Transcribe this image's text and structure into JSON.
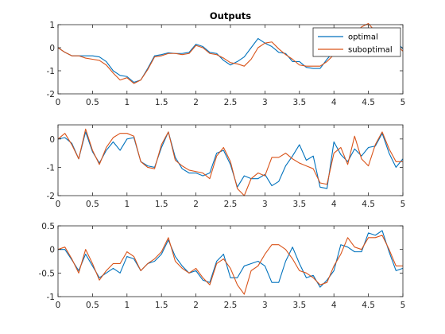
{
  "title": "Outputs",
  "colors": {
    "optimal": "#0072BD",
    "suboptimal": "#D95319",
    "axis": "#262626"
  },
  "legend": {
    "placement": "top-right",
    "entries": [
      "optimal",
      "suboptimal"
    ]
  },
  "chart_data": [
    {
      "type": "line",
      "title": "Outputs",
      "xlim": [
        0,
        5
      ],
      "ylim": [
        -2,
        1
      ],
      "xticks": [
        "0",
        "0.5",
        "1",
        "1.5",
        "2",
        "2.5",
        "3",
        "3.5",
        "4",
        "4.5",
        "5"
      ],
      "yticks": [
        "-2",
        "-1",
        "0",
        "1"
      ],
      "grid": false,
      "legend": "top-right",
      "x": [
        0,
        0.1,
        0.2,
        0.3,
        0.4,
        0.5,
        0.6,
        0.7,
        0.8,
        0.9,
        1.0,
        1.1,
        1.2,
        1.3,
        1.4,
        1.5,
        1.6,
        1.7,
        1.8,
        1.9,
        2.0,
        2.1,
        2.2,
        2.3,
        2.4,
        2.5,
        2.6,
        2.7,
        2.8,
        2.9,
        3.0,
        3.1,
        3.2,
        3.3,
        3.4,
        3.5,
        3.6,
        3.7,
        3.8,
        3.9,
        4.0,
        4.1,
        4.2,
        4.3,
        4.4,
        4.5,
        4.6,
        4.7,
        4.8,
        4.9,
        5.0
      ],
      "series": [
        {
          "name": "optimal",
          "values": [
            0.0,
            -0.2,
            -0.35,
            -0.35,
            -0.35,
            -0.35,
            -0.4,
            -0.6,
            -1.0,
            -1.2,
            -1.25,
            -1.5,
            -1.4,
            -0.9,
            -0.35,
            -0.3,
            -0.22,
            -0.25,
            -0.25,
            -0.2,
            0.15,
            0.05,
            -0.2,
            -0.25,
            -0.55,
            -0.75,
            -0.6,
            -0.4,
            0.0,
            0.4,
            0.2,
            0.05,
            -0.2,
            -0.25,
            -0.6,
            -0.6,
            -0.85,
            -0.9,
            -0.9,
            -0.5,
            -0.15,
            -0.05,
            -0.05,
            0.5,
            0.85,
            0.65,
            0.6,
            0.55,
            0.6,
            0.3,
            -0.05
          ]
        },
        {
          "name": "suboptimal",
          "values": [
            0.0,
            -0.2,
            -0.35,
            -0.35,
            -0.45,
            -0.5,
            -0.55,
            -0.75,
            -1.1,
            -1.4,
            -1.3,
            -1.55,
            -1.4,
            -0.95,
            -0.4,
            -0.35,
            -0.25,
            -0.25,
            -0.3,
            -0.25,
            0.1,
            0.0,
            -0.25,
            -0.3,
            -0.45,
            -0.65,
            -0.7,
            -0.8,
            -0.5,
            0.0,
            0.2,
            0.25,
            -0.05,
            -0.3,
            -0.5,
            -0.75,
            -0.8,
            -0.8,
            -0.8,
            -0.6,
            -0.3,
            -0.1,
            0.2,
            0.6,
            0.9,
            1.05,
            0.7,
            0.45,
            0.4,
            0.15,
            -0.15
          ]
        }
      ]
    },
    {
      "type": "line",
      "xlim": [
        0,
        5
      ],
      "ylim": [
        -2,
        0.5
      ],
      "xticks": [
        "0",
        "0.5",
        "1",
        "1.5",
        "2",
        "2.5",
        "3",
        "3.5",
        "4",
        "4.5",
        "5"
      ],
      "yticks": [
        "-2",
        "-1",
        "0"
      ],
      "grid": false,
      "x": [
        0,
        0.1,
        0.2,
        0.3,
        0.4,
        0.5,
        0.6,
        0.7,
        0.8,
        0.9,
        1.0,
        1.1,
        1.2,
        1.3,
        1.4,
        1.5,
        1.6,
        1.7,
        1.8,
        1.9,
        2.0,
        2.1,
        2.2,
        2.3,
        2.4,
        2.5,
        2.6,
        2.7,
        2.8,
        2.9,
        3.0,
        3.1,
        3.2,
        3.3,
        3.4,
        3.5,
        3.6,
        3.7,
        3.8,
        3.9,
        4.0,
        4.1,
        4.2,
        4.3,
        4.4,
        4.5,
        4.6,
        4.7,
        4.8,
        4.9,
        5.0
      ],
      "series": [
        {
          "name": "optimal",
          "values": [
            0.0,
            0.05,
            -0.15,
            -0.7,
            0.25,
            -0.45,
            -0.85,
            -0.4,
            -0.1,
            -0.4,
            0.0,
            0.05,
            -0.8,
            -0.95,
            -1.0,
            -0.3,
            0.25,
            -0.65,
            -1.05,
            -1.2,
            -1.2,
            -1.3,
            -1.2,
            -0.5,
            -0.4,
            -0.9,
            -1.7,
            -1.3,
            -1.4,
            -1.4,
            -1.25,
            -1.65,
            -1.5,
            -0.95,
            -0.6,
            -0.2,
            -0.75,
            -0.6,
            -1.7,
            -1.75,
            -0.1,
            -0.55,
            -0.8,
            -0.35,
            -0.6,
            -0.3,
            -0.25,
            0.2,
            -0.5,
            -1.0,
            -0.7
          ]
        },
        {
          "name": "suboptimal",
          "values": [
            0.0,
            0.2,
            -0.2,
            -0.7,
            0.35,
            -0.4,
            -0.9,
            -0.3,
            0.05,
            0.2,
            0.2,
            0.1,
            -0.8,
            -1.0,
            -1.05,
            -0.2,
            0.25,
            -0.75,
            -0.95,
            -1.1,
            -1.15,
            -1.2,
            -1.4,
            -0.6,
            -0.3,
            -0.8,
            -1.75,
            -2.0,
            -1.4,
            -1.2,
            -1.3,
            -0.65,
            -0.65,
            -0.5,
            -0.7,
            -0.85,
            -0.95,
            -1.05,
            -1.55,
            -1.6,
            -0.5,
            -0.3,
            -0.9,
            0.1,
            -0.7,
            -0.95,
            -0.2,
            0.25,
            -0.35,
            -0.8,
            -0.8
          ]
        }
      ]
    },
    {
      "type": "line",
      "xlim": [
        0,
        5
      ],
      "ylim": [
        -1,
        0.5
      ],
      "xticks": [
        "0",
        "0.5",
        "1",
        "1.5",
        "2",
        "2.5",
        "3",
        "3.5",
        "4",
        "4.5",
        "5"
      ],
      "yticks": [
        "-1",
        "-0.5",
        "0",
        "0.5"
      ],
      "grid": false,
      "x": [
        0,
        0.1,
        0.2,
        0.3,
        0.4,
        0.5,
        0.6,
        0.7,
        0.8,
        0.9,
        1.0,
        1.1,
        1.2,
        1.3,
        1.4,
        1.5,
        1.6,
        1.7,
        1.8,
        1.9,
        2.0,
        2.1,
        2.2,
        2.3,
        2.4,
        2.5,
        2.6,
        2.7,
        2.8,
        2.9,
        3.0,
        3.1,
        3.2,
        3.3,
        3.4,
        3.5,
        3.6,
        3.7,
        3.8,
        3.9,
        4.0,
        4.1,
        4.2,
        4.3,
        4.4,
        4.5,
        4.6,
        4.7,
        4.8,
        4.9,
        5.0
      ],
      "series": [
        {
          "name": "optimal",
          "values": [
            0.0,
            0.0,
            -0.22,
            -0.45,
            -0.1,
            -0.35,
            -0.6,
            -0.5,
            -0.4,
            -0.5,
            -0.15,
            -0.2,
            -0.45,
            -0.3,
            -0.25,
            -0.1,
            0.2,
            -0.15,
            -0.35,
            -0.5,
            -0.45,
            -0.65,
            -0.7,
            -0.25,
            -0.1,
            -0.6,
            -0.6,
            -0.35,
            -0.3,
            -0.25,
            -0.35,
            -0.7,
            -0.7,
            -0.25,
            0.05,
            -0.3,
            -0.6,
            -0.55,
            -0.8,
            -0.65,
            -0.45,
            0.1,
            0.05,
            -0.05,
            -0.05,
            0.35,
            0.3,
            0.4,
            -0.05,
            -0.45,
            -0.4
          ]
        },
        {
          "name": "suboptimal",
          "values": [
            0.0,
            0.05,
            -0.2,
            -0.5,
            0.0,
            -0.3,
            -0.65,
            -0.45,
            -0.3,
            -0.3,
            -0.05,
            -0.15,
            -0.45,
            -0.3,
            -0.2,
            -0.05,
            0.25,
            -0.25,
            -0.4,
            -0.5,
            -0.4,
            -0.6,
            -0.75,
            -0.3,
            -0.2,
            -0.4,
            -0.75,
            -0.95,
            -0.45,
            -0.35,
            -0.1,
            0.1,
            0.1,
            0.0,
            -0.2,
            -0.45,
            -0.5,
            -0.6,
            -0.75,
            -0.7,
            -0.35,
            -0.1,
            0.25,
            0.05,
            0.0,
            0.25,
            0.25,
            0.3,
            0.0,
            -0.35,
            -0.35
          ]
        }
      ]
    }
  ]
}
